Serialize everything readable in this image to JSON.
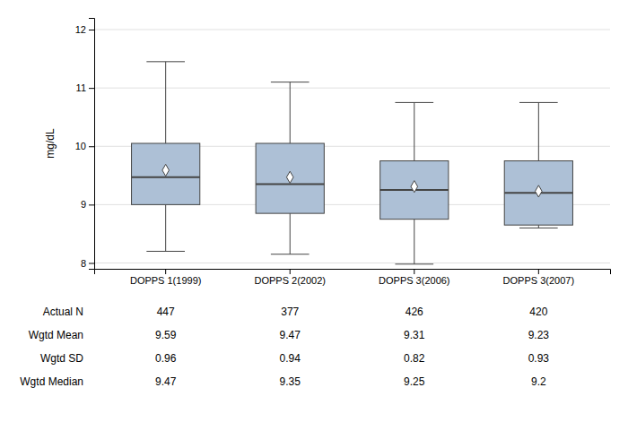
{
  "chart_data": {
    "type": "box",
    "ylabel": "mg/dL",
    "categories": [
      "DOPPS 1(1999)",
      "DOPPS 2(2002)",
      "DOPPS 3(2006)",
      "DOPPS 3(2007)"
    ],
    "boxes": [
      {
        "q1": 9.0,
        "median": 9.47,
        "q3": 10.05,
        "whislo": 8.2,
        "whishi": 11.45,
        "mean": 9.59
      },
      {
        "q1": 8.85,
        "median": 9.35,
        "q3": 10.05,
        "whislo": 8.15,
        "whishi": 11.1,
        "mean": 9.47
      },
      {
        "q1": 8.75,
        "median": 9.25,
        "q3": 9.75,
        "whislo": 7.98,
        "whishi": 10.75,
        "mean": 9.31
      },
      {
        "q1": 8.65,
        "median": 9.2,
        "q3": 9.75,
        "whislo": 8.6,
        "whishi": 10.75,
        "mean": 9.23
      }
    ],
    "color": "#adc0d6",
    "ylim": [
      7.9,
      12.2
    ],
    "yticks": [
      8,
      9,
      10,
      11,
      12
    ],
    "grid": true,
    "table_rows": [
      "Actual N",
      "Wgtd Mean",
      "Wgtd SD",
      "Wgtd Median"
    ],
    "table_data": [
      [
        "447",
        "377",
        "426",
        "420"
      ],
      [
        "9.59",
        "9.47",
        "9.31",
        "9.23"
      ],
      [
        "0.96",
        "0.94",
        "0.82",
        "0.93"
      ],
      [
        "9.47",
        "9.35",
        "9.25",
        "9.2"
      ]
    ]
  }
}
